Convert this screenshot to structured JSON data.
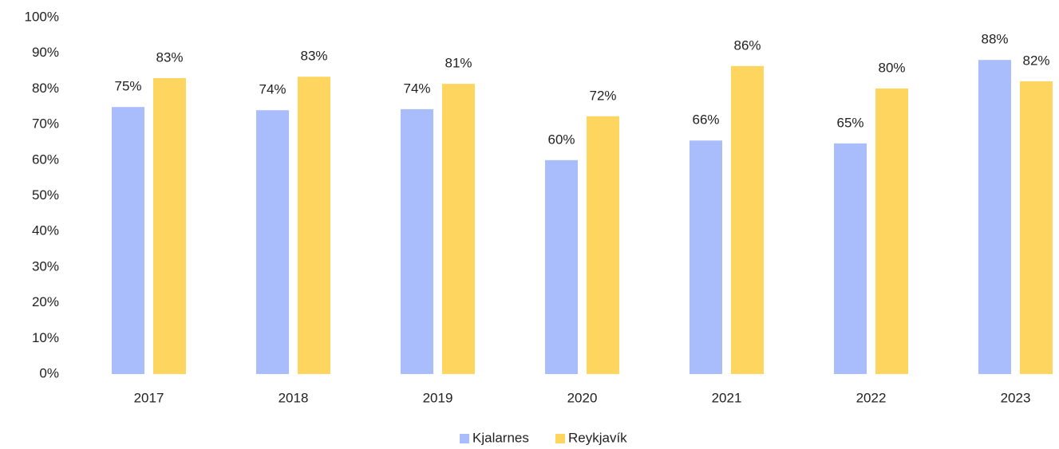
{
  "chart_data": {
    "type": "bar",
    "categories": [
      "2017",
      "2018",
      "2019",
      "2020",
      "2021",
      "2022",
      "2023"
    ],
    "series": [
      {
        "name": "Kjalarnes",
        "color": "#a9bcfc",
        "values": [
          74.9,
          74.0,
          74.3,
          60.0,
          65.5,
          64.7,
          88.1
        ],
        "value_labels": [
          "75%",
          "74%",
          "74%",
          "60%",
          "66%",
          "65%",
          "88%"
        ]
      },
      {
        "name": "Reykjavík",
        "color": "#fdd55f",
        "values": [
          83.0,
          83.4,
          81.4,
          72.3,
          86.4,
          80.1,
          82.1
        ],
        "value_labels": [
          "83%",
          "83%",
          "81%",
          "72%",
          "86%",
          "80%",
          "82%"
        ]
      }
    ],
    "ylim": [
      0,
      100
    ],
    "yticks": [
      {
        "value": 0,
        "label": "0%"
      },
      {
        "value": 10,
        "label": "10%"
      },
      {
        "value": 20,
        "label": "20%"
      },
      {
        "value": 30,
        "label": "30%"
      },
      {
        "value": 40,
        "label": "40%"
      },
      {
        "value": 50,
        "label": "50%"
      },
      {
        "value": 60,
        "label": "60%"
      },
      {
        "value": 70,
        "label": "70%"
      },
      {
        "value": 80,
        "label": "80%"
      },
      {
        "value": 90,
        "label": "90%"
      },
      {
        "value": 100,
        "label": "100%"
      }
    ],
    "grid": false,
    "legend": "bottom"
  }
}
